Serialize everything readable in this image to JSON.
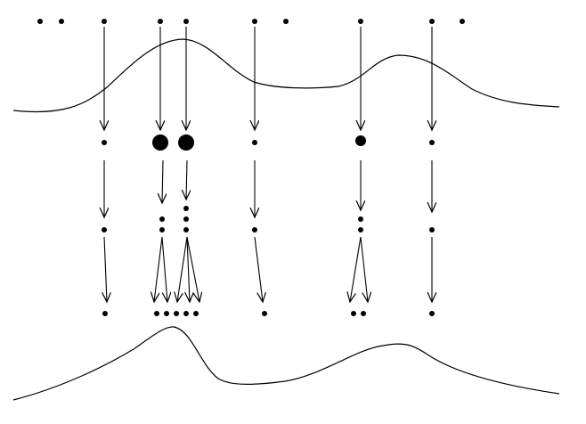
{
  "diagram": {
    "stroke_color": "#000000",
    "background_color": "#ffffff",
    "stages": [
      "top-samples",
      "weighted-samples",
      "selected-samples",
      "offspring-samples",
      "bottom-samples"
    ],
    "curves": [
      "top-density-curve",
      "bottom-density-curve"
    ],
    "particle_lineages": [
      {
        "id": "lineage-1",
        "weight": "small",
        "offspring": 1
      },
      {
        "id": "lineage-2",
        "weight": "large",
        "offspring": 2
      },
      {
        "id": "lineage-3",
        "weight": "large",
        "offspring": 3
      },
      {
        "id": "lineage-4",
        "weight": "small",
        "offspring": 1
      },
      {
        "id": "lineage-5",
        "weight": "medium",
        "offspring": 2
      },
      {
        "id": "lineage-6",
        "weight": "small",
        "offspring": 1
      }
    ],
    "unselected_top_particles": 4
  }
}
